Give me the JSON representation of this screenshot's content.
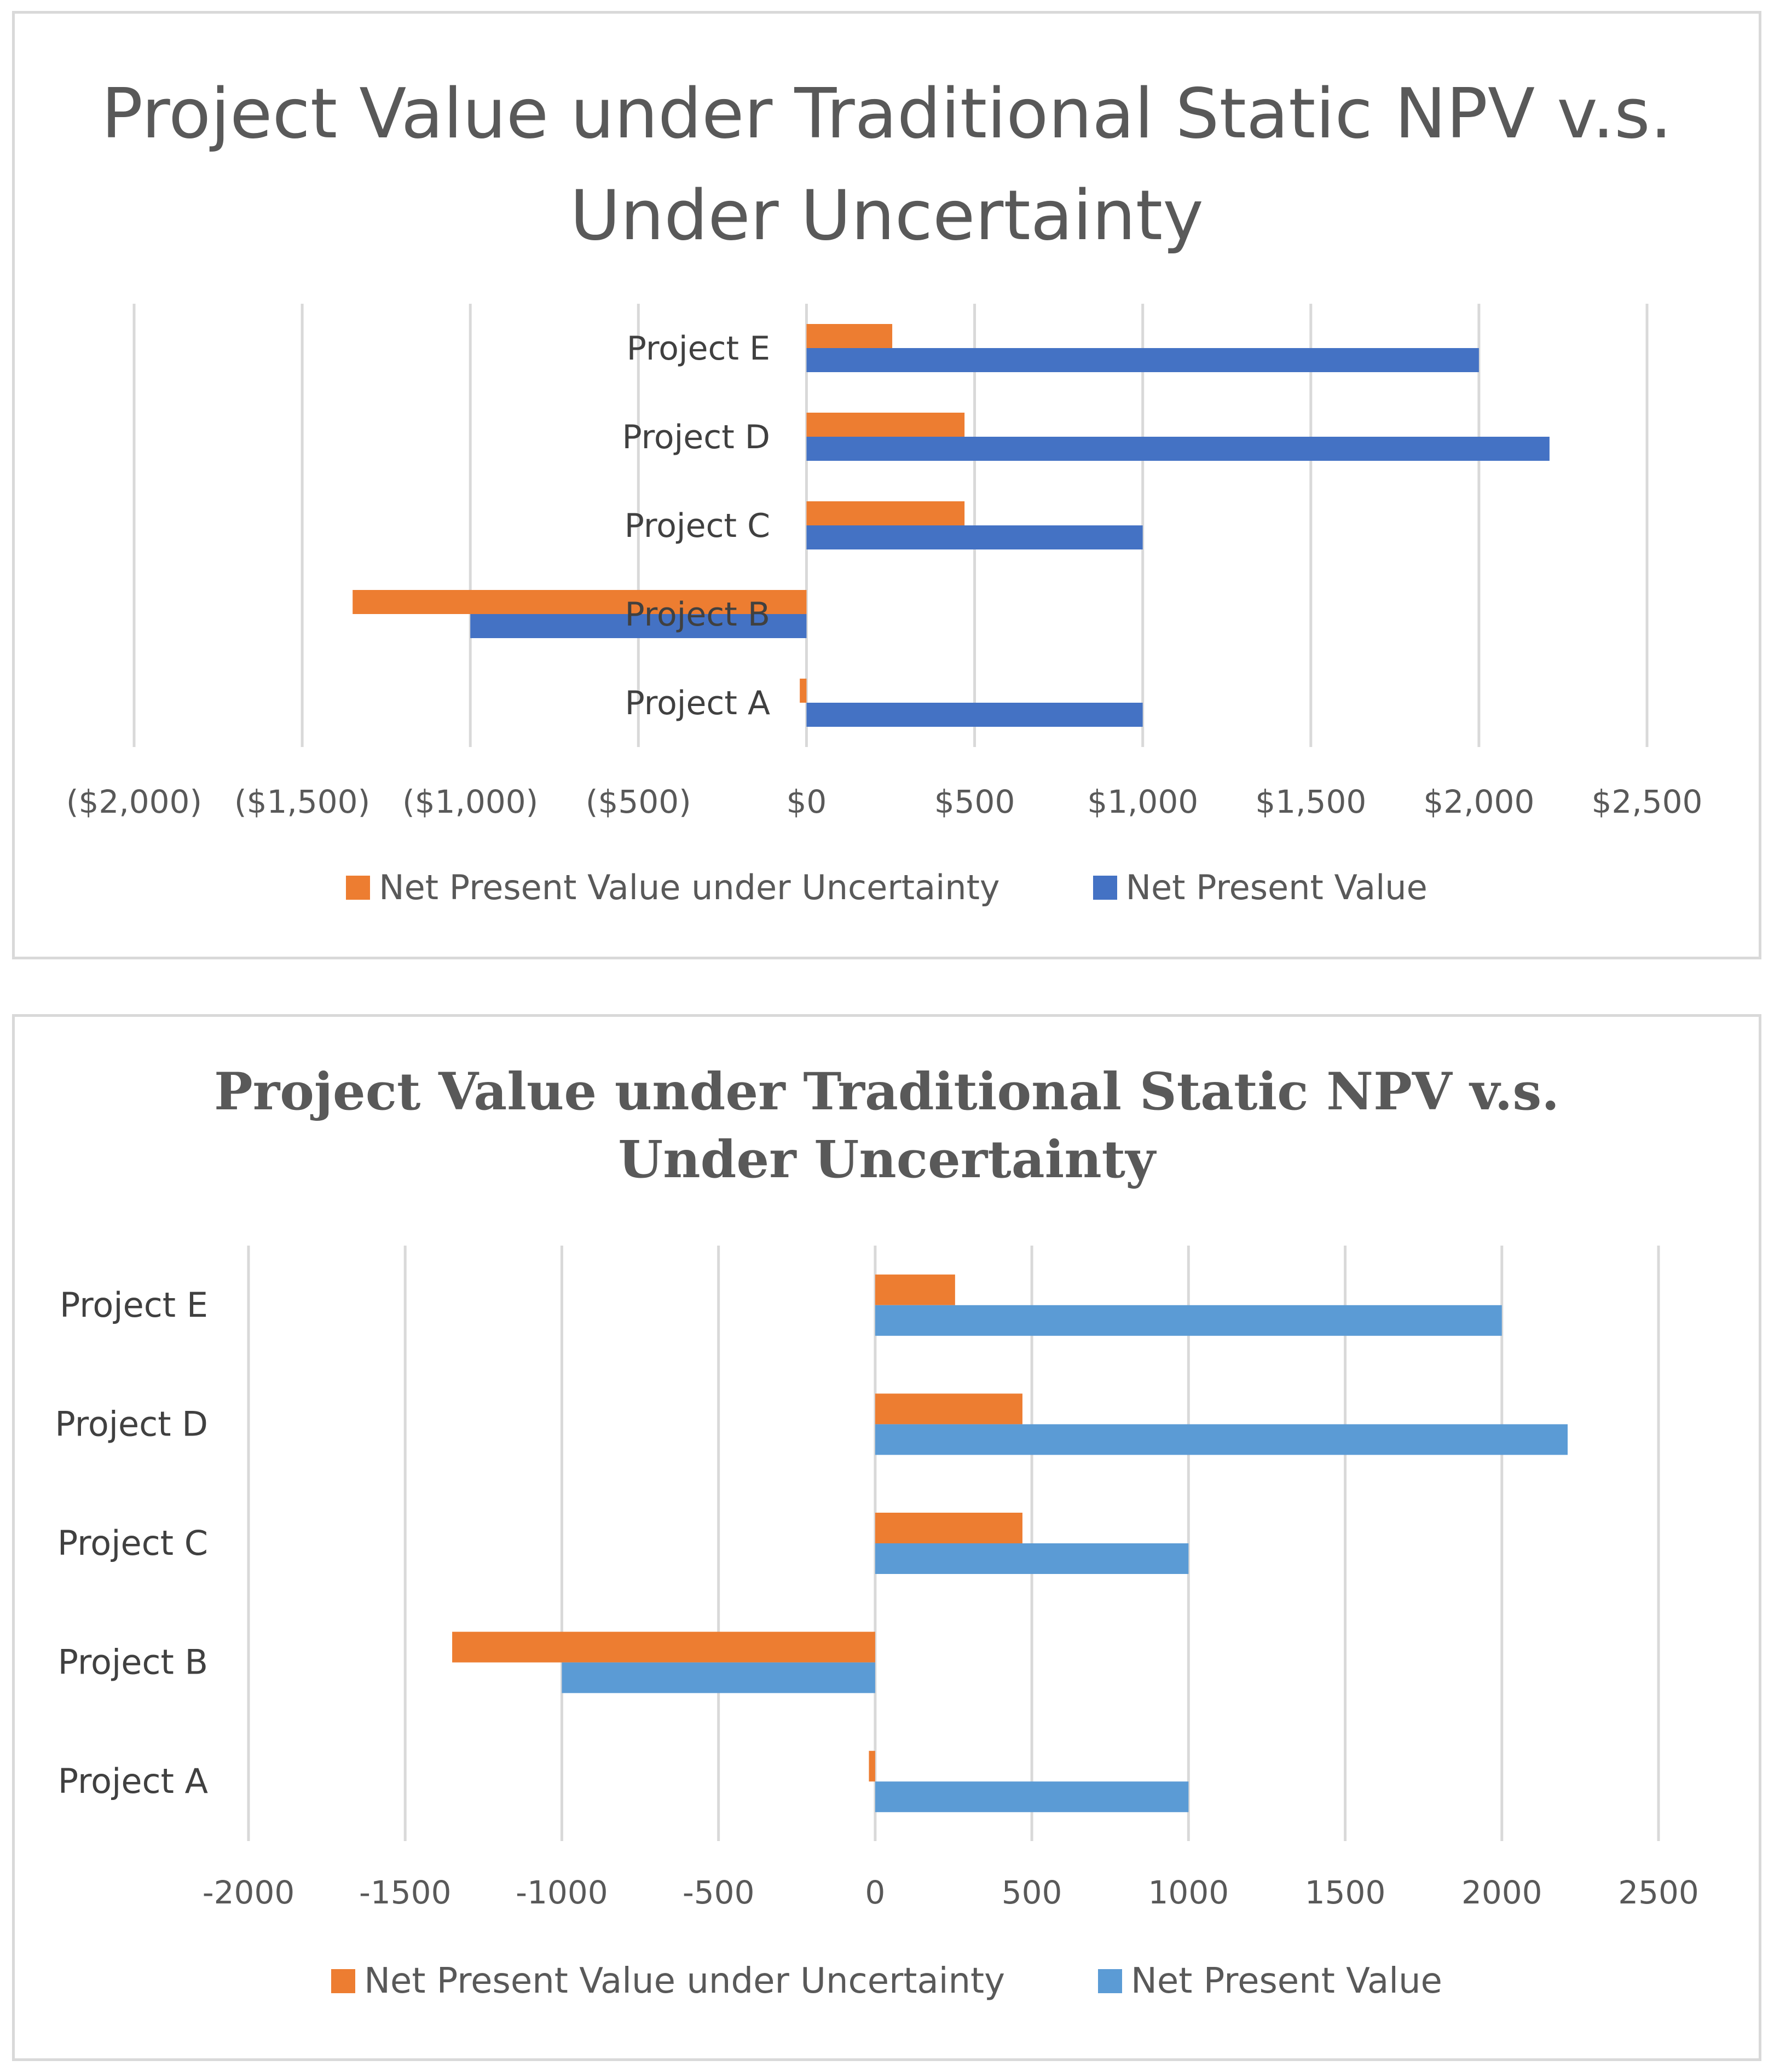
{
  "charts": [
    {
      "title": "Project Value under Traditional Static NPV v.s. Under Uncertainty",
      "legend": [
        {
          "label": "Net Present Value under Uncertainty",
          "color": "#ed7d31"
        },
        {
          "label": "Net Present Value",
          "color": "#4472c4"
        }
      ],
      "negative_tick_color": "#ff0000",
      "tick_color": "#595959"
    },
    {
      "title": "Project Value under Traditional Static NPV v.s. Under Uncertainty",
      "legend": [
        {
          "label": "Net Present Value under Uncertainty",
          "color": "#ed7d31"
        },
        {
          "label": "Net Present Value",
          "color": "#5b9bd5"
        }
      ],
      "tick_color": "#595959"
    }
  ],
  "chart_data": [
    {
      "type": "bar",
      "orientation": "horizontal",
      "title": "Project Value under Traditional Static NPV v.s. Under Uncertainty",
      "categories": [
        "Project A",
        "Project B",
        "Project C",
        "Project D",
        "Project E"
      ],
      "series": [
        {
          "name": "Net Present Value under Uncertainty",
          "values": [
            -20,
            -1350,
            470,
            470,
            255
          ]
        },
        {
          "name": "Net Present Value",
          "values": [
            1000,
            -1000,
            1000,
            2210,
            2000
          ]
        }
      ],
      "xlim": [
        -2000,
        2500
      ],
      "xticks": [
        -2000,
        -1500,
        -1000,
        -500,
        0,
        500,
        1000,
        1500,
        2000,
        2500
      ],
      "xtick_labels": [
        "($2,000)",
        "($1,500)",
        "($1,000)",
        "($500)",
        "$0",
        "$500",
        "$1,000",
        "$1,500",
        "$2,000",
        "$2,500"
      ],
      "grid": true,
      "legend_position": "bottom"
    },
    {
      "type": "bar",
      "orientation": "horizontal",
      "title": "Project Value under Traditional Static NPV v.s. Under Uncertainty",
      "categories": [
        "Project A",
        "Project B",
        "Project C",
        "Project D",
        "Project E"
      ],
      "series": [
        {
          "name": "Net Present Value under Uncertainty",
          "values": [
            -20,
            -1350,
            470,
            470,
            255
          ]
        },
        {
          "name": "Net Present Value",
          "values": [
            1000,
            -1000,
            1000,
            2210,
            2000
          ]
        }
      ],
      "xlim": [
        -2000,
        2500
      ],
      "xticks": [
        -2000,
        -1500,
        -1000,
        -500,
        0,
        500,
        1000,
        1500,
        2000,
        2500
      ],
      "xtick_labels": [
        "-2000",
        "-1500",
        "-1000",
        "-500",
        "0",
        "500",
        "1000",
        "1500",
        "2000",
        "2500"
      ],
      "grid": true,
      "legend_position": "bottom"
    }
  ]
}
